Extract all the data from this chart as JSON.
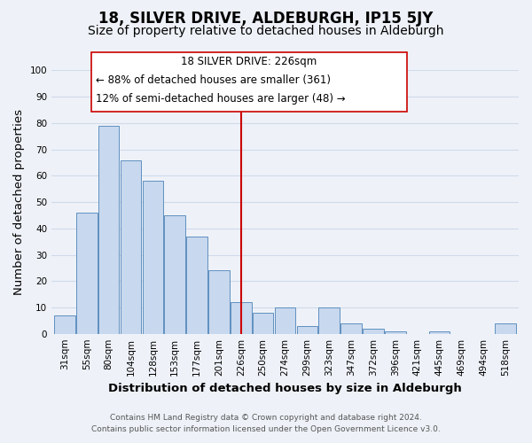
{
  "title": "18, SILVER DRIVE, ALDEBURGH, IP15 5JY",
  "subtitle": "Size of property relative to detached houses in Aldeburgh",
  "xlabel": "Distribution of detached houses by size in Aldeburgh",
  "ylabel": "Number of detached properties",
  "bar_labels": [
    "31sqm",
    "55sqm",
    "80sqm",
    "104sqm",
    "128sqm",
    "153sqm",
    "177sqm",
    "201sqm",
    "226sqm",
    "250sqm",
    "274sqm",
    "299sqm",
    "323sqm",
    "347sqm",
    "372sqm",
    "396sqm",
    "421sqm",
    "445sqm",
    "469sqm",
    "494sqm",
    "518sqm"
  ],
  "bar_values": [
    7,
    46,
    79,
    66,
    58,
    45,
    37,
    24,
    12,
    8,
    10,
    3,
    10,
    4,
    2,
    1,
    0,
    1,
    0,
    0,
    4
  ],
  "bar_color": "#c8d8ee",
  "bar_edge_color": "#6090c0",
  "highlight_line_color": "#cc0000",
  "vline_x_index": 8,
  "annotation_title": "18 SILVER DRIVE: 226sqm",
  "annotation_line1": "← 88% of detached houses are smaller (361)",
  "annotation_line2": "12% of semi-detached houses are larger (48) →",
  "annotation_box_color": "#ffffff",
  "annotation_box_edge": "#cc0000",
  "ylim": [
    0,
    100
  ],
  "grid_color": "#d0daea",
  "background_color": "#eef2f8",
  "footer_line1": "Contains HM Land Registry data © Crown copyright and database right 2024.",
  "footer_line2": "Contains public sector information licensed under the Open Government Licence v3.0.",
  "title_fontsize": 12,
  "subtitle_fontsize": 10,
  "axis_label_fontsize": 9.5,
  "tick_fontsize": 7.5,
  "annotation_fontsize": 8.5,
  "footer_fontsize": 6.5
}
